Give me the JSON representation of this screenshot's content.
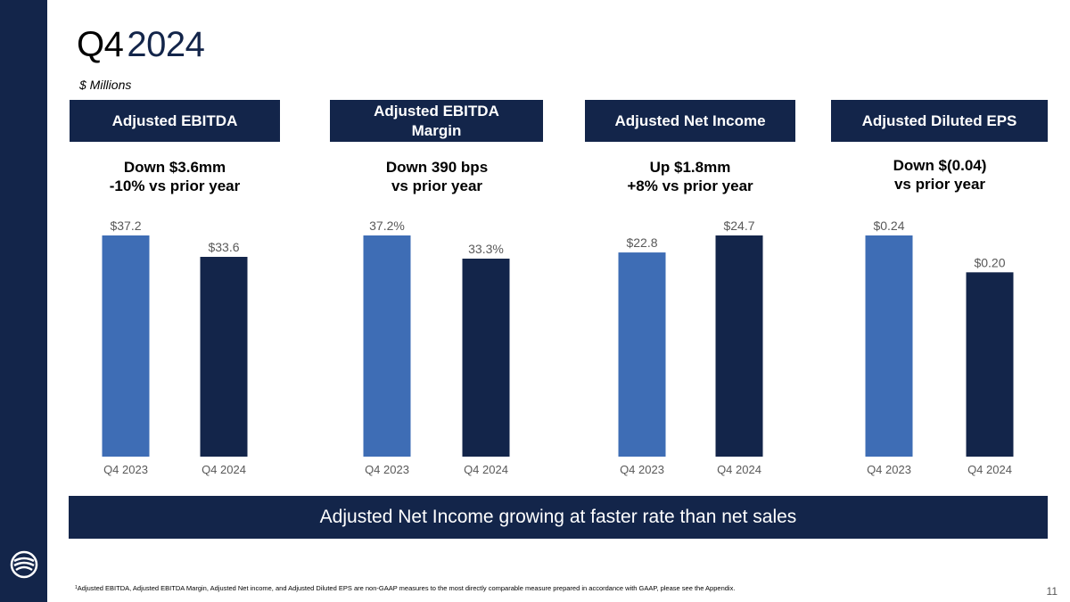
{
  "title": {
    "quarter": "Q4",
    "year": "2024"
  },
  "subtitle": "$ Millions",
  "colors": {
    "navy": "#13254a",
    "blue": "#3e6db5",
    "label": "#595959"
  },
  "metrics": [
    {
      "header": "Adjusted EBITDA",
      "change_line1": "Down $3.6mm",
      "change_line2": "-10% vs prior year"
    },
    {
      "header": "Adjusted EBITDA Margin",
      "change_line1": "Down 390 bps",
      "change_line2": "vs prior year"
    },
    {
      "header": "Adjusted Net Income",
      "change_line1": "Up $1.8mm",
      "change_line2": "+8% vs prior year"
    },
    {
      "header": "Adjusted Diluted EPS",
      "change_line1": "Down $(0.04)",
      "change_line2": "vs prior year"
    }
  ],
  "chart_data": [
    {
      "type": "bar",
      "title": "Adjusted EBITDA",
      "categories": [
        "Q4 2023",
        "Q4 2024"
      ],
      "values": [
        37.2,
        33.6
      ],
      "labels": [
        "$37.2",
        "$33.6"
      ]
    },
    {
      "type": "bar",
      "title": "Adjusted EBITDA Margin",
      "categories": [
        "Q4 2023",
        "Q4 2024"
      ],
      "values": [
        37.2,
        33.3
      ],
      "labels": [
        "37.2%",
        "33.3%"
      ]
    },
    {
      "type": "bar",
      "title": "Adjusted Net Income",
      "categories": [
        "Q4 2023",
        "Q4 2024"
      ],
      "values": [
        22.8,
        24.7
      ],
      "labels": [
        "$22.8",
        "$24.7"
      ]
    },
    {
      "type": "bar",
      "title": "Adjusted Diluted EPS",
      "categories": [
        "Q4 2023",
        "Q4 2024"
      ],
      "values": [
        0.24,
        0.2
      ],
      "labels": [
        "$0.24",
        "$0.20"
      ]
    }
  ],
  "banner": "Adjusted Net Income growing at faster rate than net sales",
  "footnote": {
    "marker": "1",
    "text": "Adjusted EBITDA, Adjusted EBITDA Margin, Adjusted Net income, and Adjusted Diluted EPS are non-GAAP measures to the most directly comparable measure prepared in accordance with GAAP, please see the Appendix."
  },
  "page_number": "11"
}
